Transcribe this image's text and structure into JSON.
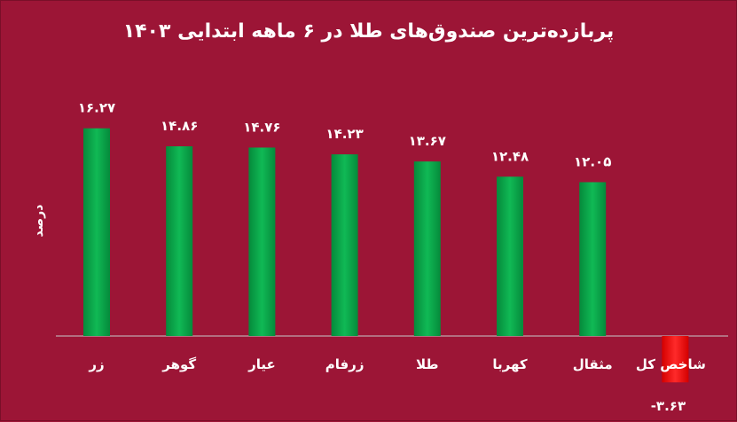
{
  "chart_data": {
    "type": "bar",
    "title": "پربازده‌ترین صندوق‌های طلا در ۶ ماهه ابتدایی ۱۴۰۳",
    "ylabel": "درصد",
    "xlabel": "",
    "categories": [
      "زر",
      "گوهر",
      "عیار",
      "زرفام",
      "طلا",
      "کهربا",
      "مثقال",
      "شاخص کل"
    ],
    "values": [
      16.27,
      14.86,
      14.76,
      14.23,
      13.67,
      12.48,
      12.05,
      -3.63
    ],
    "value_labels": [
      "۱۶.۲۷",
      "۱۴.۸۶",
      "۱۴.۷۶",
      "۱۴.۲۳",
      "۱۳.۶۷",
      "۱۲.۴۸",
      "۱۲.۰۵",
      "-۳.۶۳"
    ],
    "colors": {
      "positive": "#0aa64a",
      "negative": "#ff1a1a",
      "background": "#9c1536",
      "text": "#ffffff",
      "axis": "#c9c9c9"
    },
    "ylim": [
      -4,
      18
    ],
    "grid": false,
    "legend": "none"
  }
}
